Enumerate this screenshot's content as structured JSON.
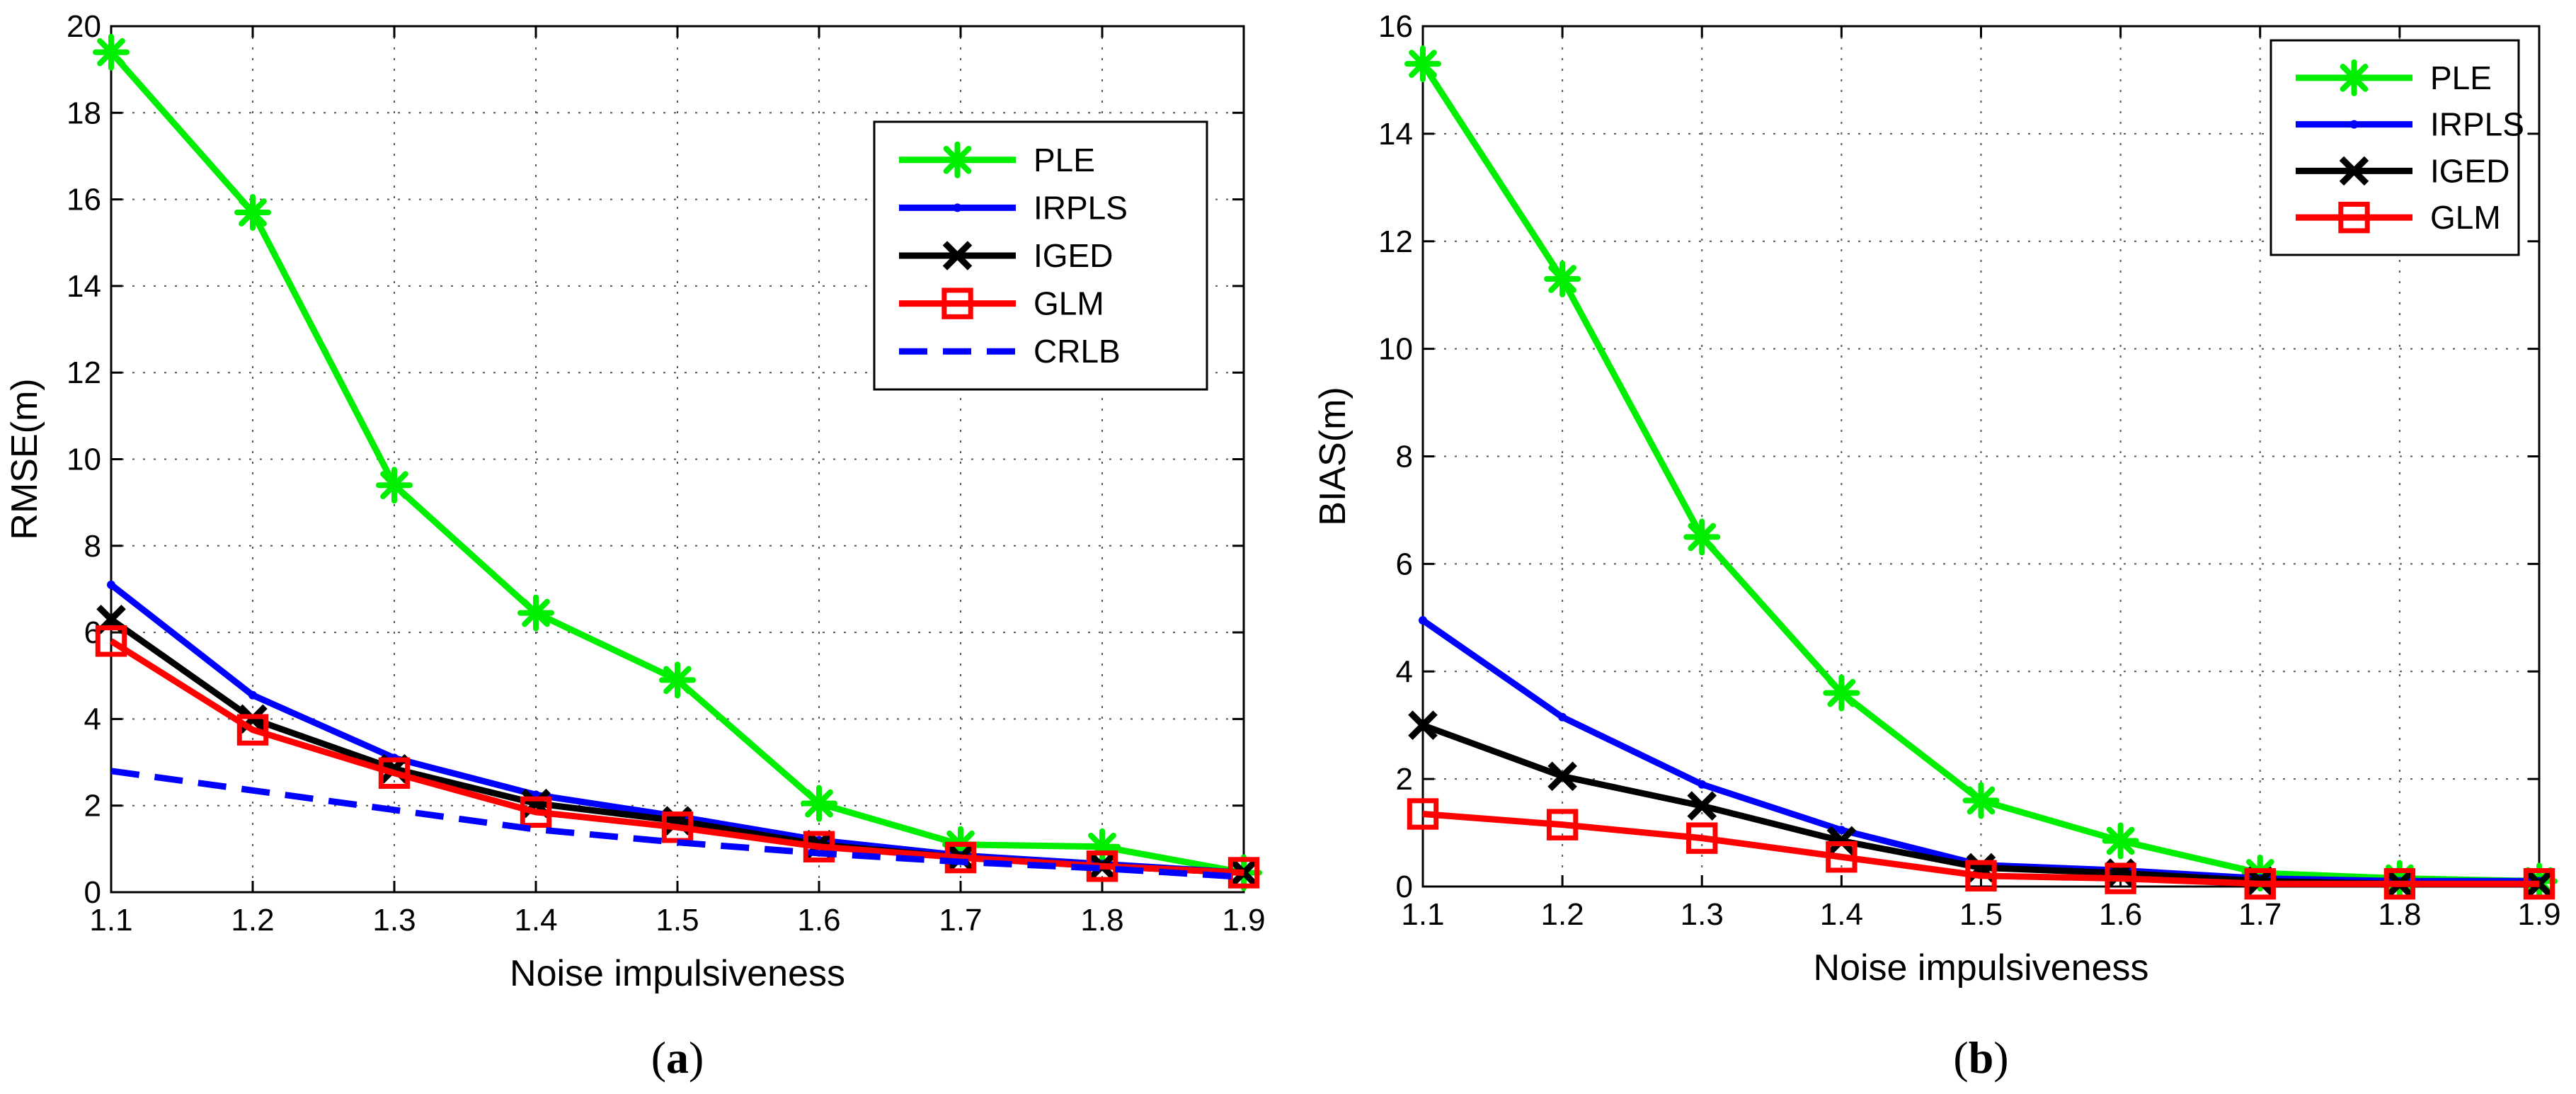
{
  "chart_data": [
    {
      "type": "line",
      "panel_label": {
        "open": "(",
        "letter": "a",
        "close": ")"
      },
      "xlabel": "Noise impulsiveness",
      "ylabel": "RMSE(m)",
      "xlim": [
        1.1,
        1.9
      ],
      "ylim": [
        0,
        20
      ],
      "xticks": [
        "1.1",
        "1.2",
        "1.3",
        "1.4",
        "1.5",
        "1.6",
        "1.7",
        "1.8",
        "1.9"
      ],
      "yticks": [
        "0",
        "2",
        "4",
        "6",
        "8",
        "10",
        "12",
        "14",
        "16",
        "18",
        "20"
      ],
      "grid": true,
      "legend_position": "upper-right",
      "x": [
        1.1,
        1.2,
        1.3,
        1.4,
        1.5,
        1.6,
        1.7,
        1.8,
        1.9
      ],
      "series": [
        {
          "name": "PLE",
          "color": "#00ee00",
          "marker": "asterisk",
          "dash": "solid",
          "values": [
            19.4,
            15.7,
            9.4,
            6.45,
            4.9,
            2.05,
            1.1,
            1.05,
            0.45
          ]
        },
        {
          "name": "IRPLS",
          "color": "#0000ff",
          "marker": "dot",
          "dash": "solid",
          "values": [
            7.1,
            4.55,
            3.1,
            2.25,
            1.75,
            1.2,
            0.85,
            0.65,
            0.45
          ]
        },
        {
          "name": "IGED",
          "color": "#000000",
          "marker": "x",
          "dash": "solid",
          "values": [
            6.3,
            4.0,
            2.85,
            2.05,
            1.65,
            1.1,
            0.8,
            0.6,
            0.45
          ]
        },
        {
          "name": "GLM",
          "color": "#ff0000",
          "marker": "square",
          "dash": "solid",
          "values": [
            5.8,
            3.75,
            2.75,
            1.85,
            1.5,
            1.05,
            0.8,
            0.6,
            0.45
          ]
        },
        {
          "name": "CRLB",
          "color": "#0000ff",
          "marker": "none",
          "dash": "dashed",
          "values": [
            2.8,
            2.35,
            1.9,
            1.45,
            1.15,
            0.9,
            0.7,
            0.55,
            0.35
          ]
        }
      ]
    },
    {
      "type": "line",
      "panel_label": {
        "open": "(",
        "letter": "b",
        "close": ")"
      },
      "xlabel": "Noise impulsiveness",
      "ylabel": "BIAS(m)",
      "xlim": [
        1.1,
        1.9
      ],
      "ylim": [
        0,
        16
      ],
      "xticks": [
        "1.1",
        "1.2",
        "1.3",
        "1.4",
        "1.5",
        "1.6",
        "1.7",
        "1.8",
        "1.9"
      ],
      "yticks": [
        "0",
        "2",
        "4",
        "6",
        "8",
        "10",
        "12",
        "14",
        "16"
      ],
      "grid": true,
      "legend_position": "upper-right",
      "x": [
        1.1,
        1.2,
        1.3,
        1.4,
        1.5,
        1.6,
        1.7,
        1.8,
        1.9
      ],
      "series": [
        {
          "name": "PLE",
          "color": "#00ee00",
          "marker": "asterisk",
          "dash": "solid",
          "values": [
            15.3,
            11.3,
            6.5,
            3.6,
            1.6,
            0.85,
            0.25,
            0.15,
            0.1
          ]
        },
        {
          "name": "IRPLS",
          "color": "#0000ff",
          "marker": "dot",
          "dash": "solid",
          "values": [
            4.95,
            3.15,
            1.9,
            1.05,
            0.4,
            0.3,
            0.15,
            0.1,
            0.1
          ]
        },
        {
          "name": "IGED",
          "color": "#000000",
          "marker": "x",
          "dash": "solid",
          "values": [
            3.0,
            2.05,
            1.5,
            0.85,
            0.35,
            0.25,
            0.1,
            0.05,
            0.05
          ]
        },
        {
          "name": "GLM",
          "color": "#ff0000",
          "marker": "square",
          "dash": "solid",
          "values": [
            1.35,
            1.15,
            0.9,
            0.55,
            0.2,
            0.15,
            0.05,
            0.05,
            0.05
          ]
        }
      ]
    }
  ]
}
